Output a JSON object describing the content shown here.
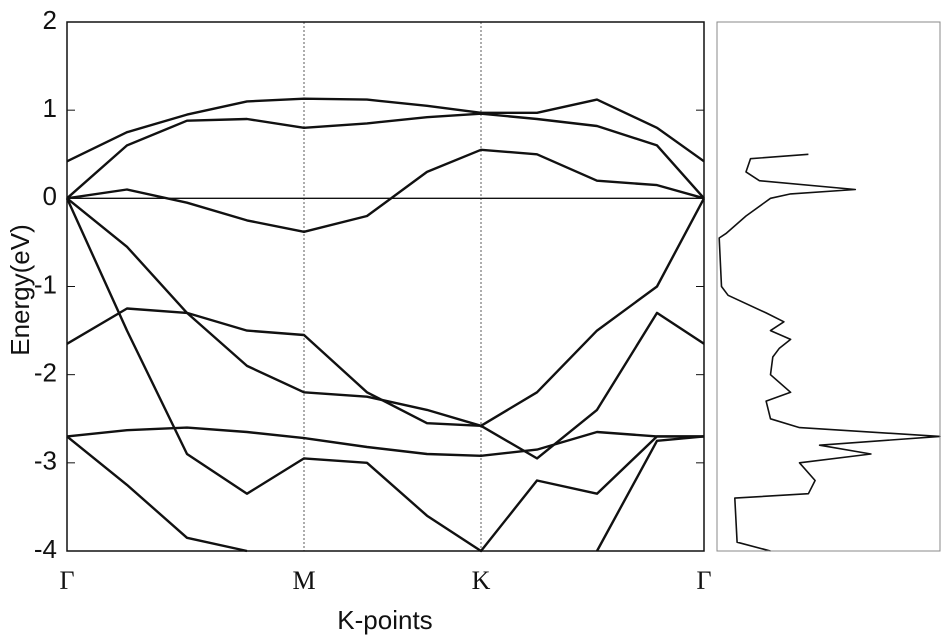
{
  "chart_data": [
    {
      "type": "line",
      "x_label": "K-points",
      "y_label": "Energy(eV)",
      "x": [
        0,
        0.6,
        1.2,
        1.8,
        2.37,
        3.0,
        3.6,
        4.14,
        4.7,
        5.3,
        5.9,
        6.37
      ],
      "xlim": [
        0,
        6.37
      ],
      "xticks": [
        {
          "value": 0,
          "label": "Γ"
        },
        {
          "value": 2.37,
          "label": "M"
        },
        {
          "value": 4.14,
          "label": "K"
        },
        {
          "value": 6.37,
          "label": "Γ"
        }
      ],
      "ylim": [
        -4,
        2
      ],
      "yticks": [
        -4,
        -3,
        -2,
        -1,
        0,
        1,
        2
      ],
      "hline": 0,
      "grid": true,
      "color": "#111111",
      "series": [
        {
          "values": [
            0.42,
            0.75,
            0.95,
            1.1,
            1.13,
            1.12,
            1.05,
            0.97,
            0.97,
            1.12,
            0.8,
            0.42
          ]
        },
        {
          "values": [
            0,
            0.6,
            0.88,
            0.9,
            0.8,
            0.85,
            0.92,
            0.96,
            0.9,
            0.82,
            0.6,
            0
          ]
        },
        {
          "values": [
            0,
            0.1,
            -0.05,
            -0.25,
            -0.38,
            -0.2,
            0.3,
            0.55,
            0.5,
            0.2,
            0.15,
            0
          ]
        },
        {
          "values": [
            0,
            -0.55,
            -1.3,
            -1.9,
            -2.2,
            -2.25,
            -2.4,
            -2.58,
            -2.2,
            -1.5,
            -1.0,
            0
          ]
        },
        {
          "values": [
            0,
            -1.5,
            -2.9,
            -3.35,
            -2.95,
            -3.0,
            -3.6,
            -4.0,
            -3.2,
            -3.35,
            -2.7,
            -2.7
          ]
        },
        {
          "values": [
            -1.65,
            -1.25,
            -1.3,
            -1.5,
            -1.55,
            -2.2,
            -2.55,
            -2.58,
            -2.95,
            -2.4,
            -1.3,
            -1.65
          ]
        },
        {
          "values": [
            -2.7,
            -2.63,
            -2.6,
            -2.65,
            -2.72,
            -2.82,
            -2.9,
            -2.92,
            -2.85,
            -2.65,
            -2.7,
            -2.7
          ]
        },
        {
          "values": [
            -2.7,
            -3.25,
            -3.85,
            -4.0,
            null,
            null,
            null,
            null,
            null,
            -4.0,
            -2.75,
            -2.7
          ]
        }
      ]
    },
    {
      "type": "line",
      "color": "#111111",
      "xlim": [
        0,
        1
      ],
      "ylim": [
        -4,
        2
      ],
      "x": [
        0.41,
        0.15,
        0.13,
        0.19,
        0.62,
        0.33,
        0.24,
        0.13,
        0.04,
        0.01,
        0.02,
        0.05,
        0.22,
        0.3,
        0.24,
        0.33,
        0.28,
        0.25,
        0.24,
        0.33,
        0.22,
        0.24,
        0.37,
        1.0,
        0.46,
        0.69,
        0.37,
        0.44,
        0.41,
        0.08,
        0.09,
        0.24
      ],
      "values": [
        0.5,
        0.45,
        0.3,
        0.2,
        0.1,
        0.05,
        0,
        -0.2,
        -0.4,
        -0.45,
        -1.0,
        -1.1,
        -1.3,
        -1.4,
        -1.5,
        -1.6,
        -1.7,
        -1.8,
        -2.0,
        -2.2,
        -2.3,
        -2.5,
        -2.6,
        -2.7,
        -2.8,
        -2.9,
        -3.0,
        -3.2,
        -3.35,
        -3.4,
        -3.9,
        -4.0
      ]
    }
  ]
}
